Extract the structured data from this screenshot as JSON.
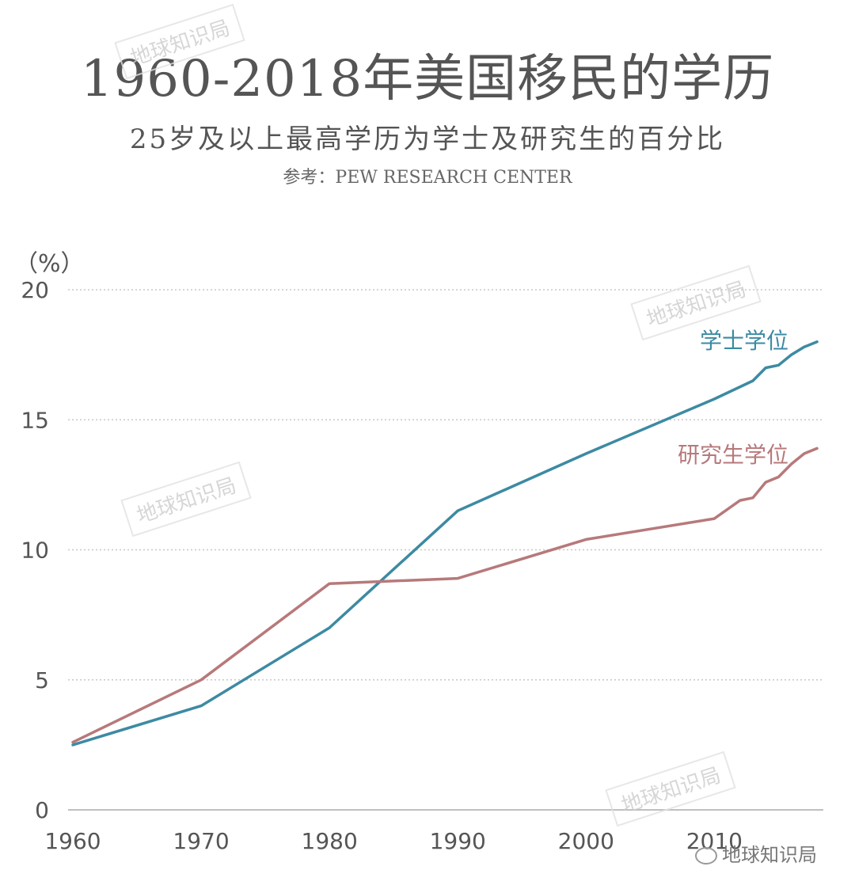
{
  "title": "1960-2018年美国移民的学历",
  "subtitle": "25岁及以上最高学历为学士及研究生的百分比",
  "source": "参考：PEW RESEARCH CENTER",
  "watermark": "地球知识局",
  "brand": "地球知识局",
  "chart_data": {
    "type": "line",
    "title": "1960-2018年美国移民的学历",
    "ylabel": "（%）",
    "xlabel": "",
    "xlim": [
      1960,
      2018
    ],
    "ylim": [
      0,
      20
    ],
    "yticks": [
      0,
      5,
      10,
      15,
      20
    ],
    "xticks": [
      1960,
      1970,
      1980,
      1990,
      2000,
      2010
    ],
    "grid": true,
    "legend": "inline-right",
    "series": [
      {
        "name": "学士学位",
        "color": "#3d8aa3",
        "x": [
          1960,
          1970,
          1980,
          1990,
          2000,
          2010,
          2013,
          2014,
          2015,
          2016,
          2017,
          2018
        ],
        "values": [
          2.5,
          4.0,
          7.0,
          11.5,
          13.7,
          15.8,
          16.5,
          17.0,
          17.1,
          17.5,
          17.8,
          18.0
        ]
      },
      {
        "name": "研究生学位",
        "color": "#b7797b",
        "x": [
          1960,
          1970,
          1980,
          1990,
          2000,
          2010,
          2012,
          2013,
          2014,
          2015,
          2016,
          2017,
          2018
        ],
        "values": [
          2.6,
          5.0,
          8.7,
          8.9,
          10.4,
          11.2,
          11.9,
          12.0,
          12.6,
          12.8,
          13.3,
          13.7,
          13.9
        ]
      }
    ]
  }
}
